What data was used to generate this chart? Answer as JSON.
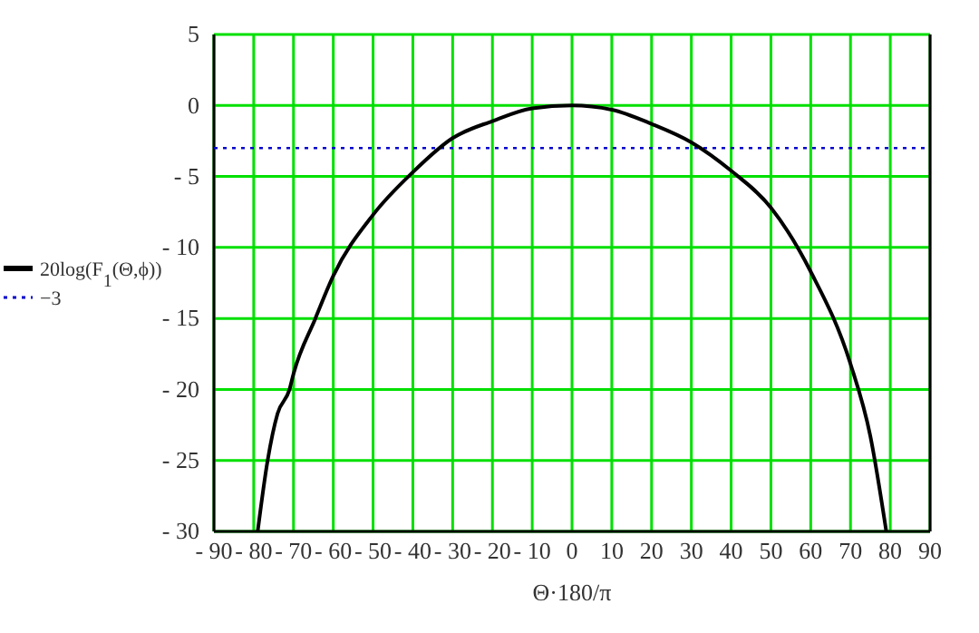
{
  "chart_data": {
    "type": "line",
    "xlabel": "Θ·180/π",
    "x": [
      -79,
      -76.5,
      -74,
      -71,
      -70,
      -64.5,
      -60,
      -50,
      -40,
      -30,
      -20,
      -10,
      0,
      10,
      20,
      30,
      40,
      50,
      60,
      70,
      75,
      79
    ],
    "series": [
      {
        "name": "20log(F$_{1}$(Θ,ϕ))",
        "color": "#000000",
        "values": [
          -30,
          -25,
          -21.7,
          -20,
          -18.9,
          -15,
          -12,
          -7.7,
          -4.7,
          -2.3,
          -1.1,
          -0.2,
          0,
          -0.3,
          -1.3,
          -2.6,
          -4.6,
          -7.2,
          -11.7,
          -18.2,
          -23.3,
          -30
        ]
      }
    ],
    "xlim": [
      -90,
      90
    ],
    "ylim": [
      -30,
      5
    ],
    "xticks": [
      -90,
      -80,
      -70,
      -60,
      -50,
      -40,
      -30,
      -20,
      -10,
      0,
      10,
      20,
      30,
      40,
      50,
      60,
      70,
      80,
      90
    ],
    "yticks": [
      -30,
      -25,
      -20,
      -15,
      -10,
      -5,
      0,
      5
    ],
    "ref_lines": [
      {
        "axis": "y",
        "value": -3,
        "label": "−3",
        "color": "#0000cc",
        "line_style": "dotted"
      }
    ],
    "grid": true,
    "legend": "left",
    "marker": "none",
    "line_style": "solid"
  }
}
